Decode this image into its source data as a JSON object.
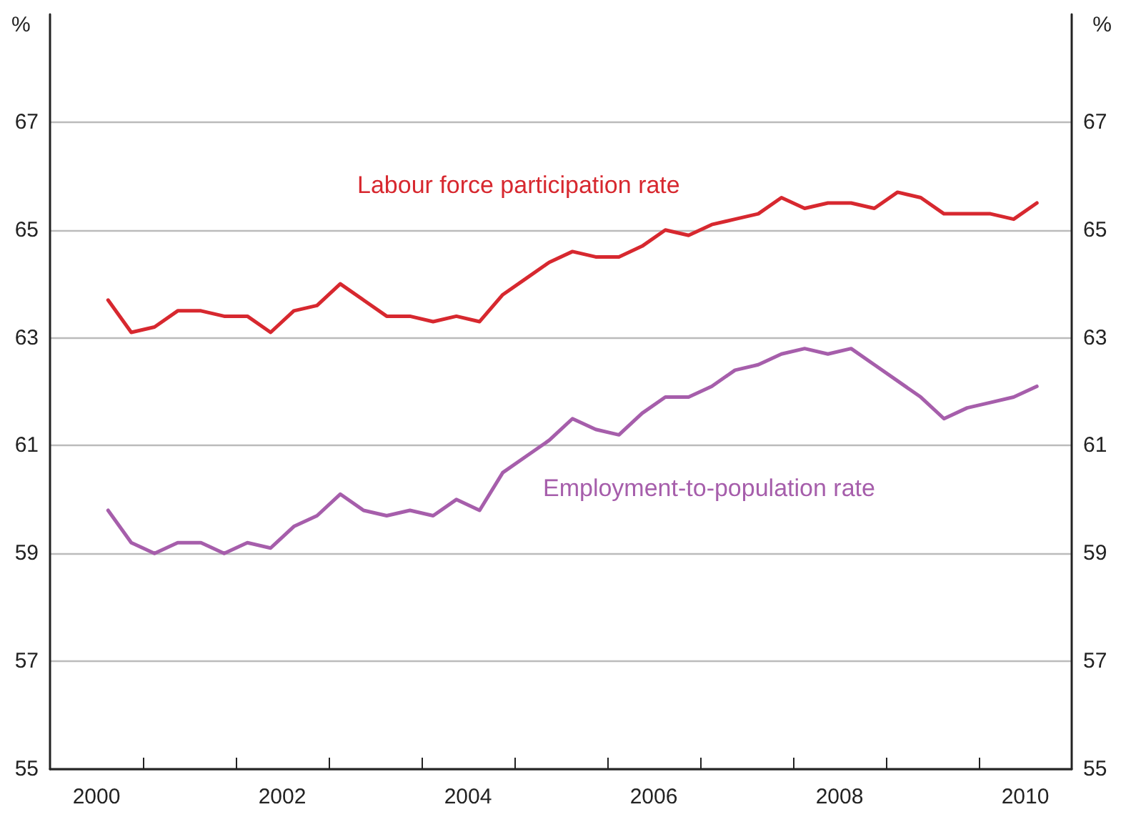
{
  "chart_data": {
    "type": "line",
    "ylabel": "%",
    "y2label": "%",
    "x": [
      2000.625,
      2000.875,
      2001.125,
      2001.375,
      2001.625,
      2001.875,
      2002.125,
      2002.375,
      2002.625,
      2002.875,
      2003.125,
      2003.375,
      2003.625,
      2003.875,
      2004.125,
      2004.375,
      2004.625,
      2004.875,
      2005.125,
      2005.375,
      2005.625,
      2005.875,
      2006.125,
      2006.375,
      2006.625,
      2006.875,
      2007.125,
      2007.375,
      2007.625,
      2007.875,
      2008.125,
      2008.375,
      2008.625,
      2008.875,
      2009.125,
      2009.375,
      2009.625,
      2009.875,
      2010.125,
      2010.375,
      2010.625
    ],
    "series": [
      {
        "name": "Labour force participation rate",
        "color": "#d7282f",
        "values": [
          63.7,
          63.1,
          63.2,
          63.5,
          63.5,
          63.4,
          63.4,
          63.1,
          63.5,
          63.6,
          64.0,
          63.7,
          63.4,
          63.4,
          63.3,
          63.4,
          63.3,
          63.8,
          64.1,
          64.4,
          64.6,
          64.5,
          64.5,
          64.7,
          65.0,
          64.9,
          65.1,
          65.2,
          65.3,
          65.6,
          65.4,
          65.5,
          65.5,
          65.4,
          65.7,
          65.6,
          65.3,
          65.3,
          65.3,
          65.2,
          65.5
        ]
      },
      {
        "name": "Employment-to-population rate",
        "color": "#a65eab",
        "values": [
          59.8,
          59.2,
          59.0,
          59.2,
          59.2,
          59.0,
          59.2,
          59.1,
          59.5,
          59.7,
          60.1,
          59.8,
          59.7,
          59.8,
          59.7,
          60.0,
          59.8,
          60.5,
          60.8,
          61.1,
          61.5,
          61.3,
          61.2,
          61.6,
          61.9,
          61.9,
          62.1,
          62.4,
          62.5,
          62.7,
          62.8,
          62.7,
          62.8,
          62.5,
          62.2,
          61.9,
          61.5,
          61.7,
          61.8,
          61.9,
          62.1
        ]
      }
    ],
    "xlim": [
      2000,
      2011
    ],
    "xticks": [
      {
        "value": 2000.5,
        "label": "2000"
      },
      {
        "value": 2001,
        "label": null
      },
      {
        "value": 2002,
        "label": null
      },
      {
        "value": 2002.5,
        "label": "2002"
      },
      {
        "value": 2003,
        "label": null
      },
      {
        "value": 2004,
        "label": null
      },
      {
        "value": 2004.5,
        "label": "2004"
      },
      {
        "value": 2005,
        "label": null
      },
      {
        "value": 2006,
        "label": null
      },
      {
        "value": 2006.5,
        "label": "2006"
      },
      {
        "value": 2007,
        "label": null
      },
      {
        "value": 2008,
        "label": null
      },
      {
        "value": 2008.5,
        "label": "2008"
      },
      {
        "value": 2009,
        "label": null
      },
      {
        "value": 2010,
        "label": null
      },
      {
        "value": 2010.5,
        "label": "2010"
      }
    ],
    "ylim": [
      55,
      69
    ],
    "yticks": [
      55,
      57,
      59,
      61,
      63,
      65,
      67
    ],
    "y2lim": [
      55,
      69
    ],
    "y2ticks": [
      55,
      57,
      59,
      61,
      63,
      65,
      67
    ],
    "grid": "y",
    "legend": false,
    "marker": "none",
    "line_style": "solid"
  }
}
